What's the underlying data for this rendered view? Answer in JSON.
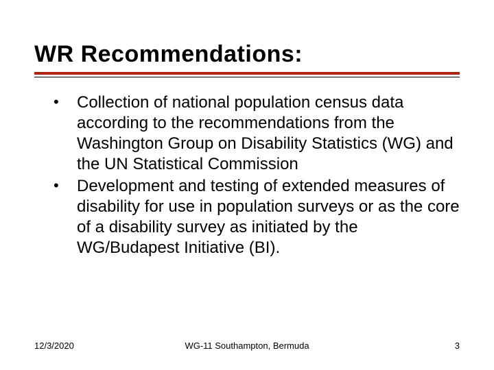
{
  "title": "WR Recommendations:",
  "bullets": [
    "Collection of national population census data according to the recommendations from the Washington Group on Disability Statistics (WG) and the UN Statistical Commission",
    "Development and testing of extended measures of disability for use in population surveys or as the core of a disability survey as initiated by the WG/Budapest Initiative (BI)."
  ],
  "footer": {
    "date": "12/3/2020",
    "center": "WG-11 Southampton, Bermuda",
    "page": "3"
  },
  "colors": {
    "accent": "#b02418",
    "text": "#000000",
    "background": "#ffffff"
  },
  "typography": {
    "title_fontsize": 34,
    "body_fontsize": 24,
    "footer_fontsize": 13,
    "font_family": "Verdana"
  }
}
